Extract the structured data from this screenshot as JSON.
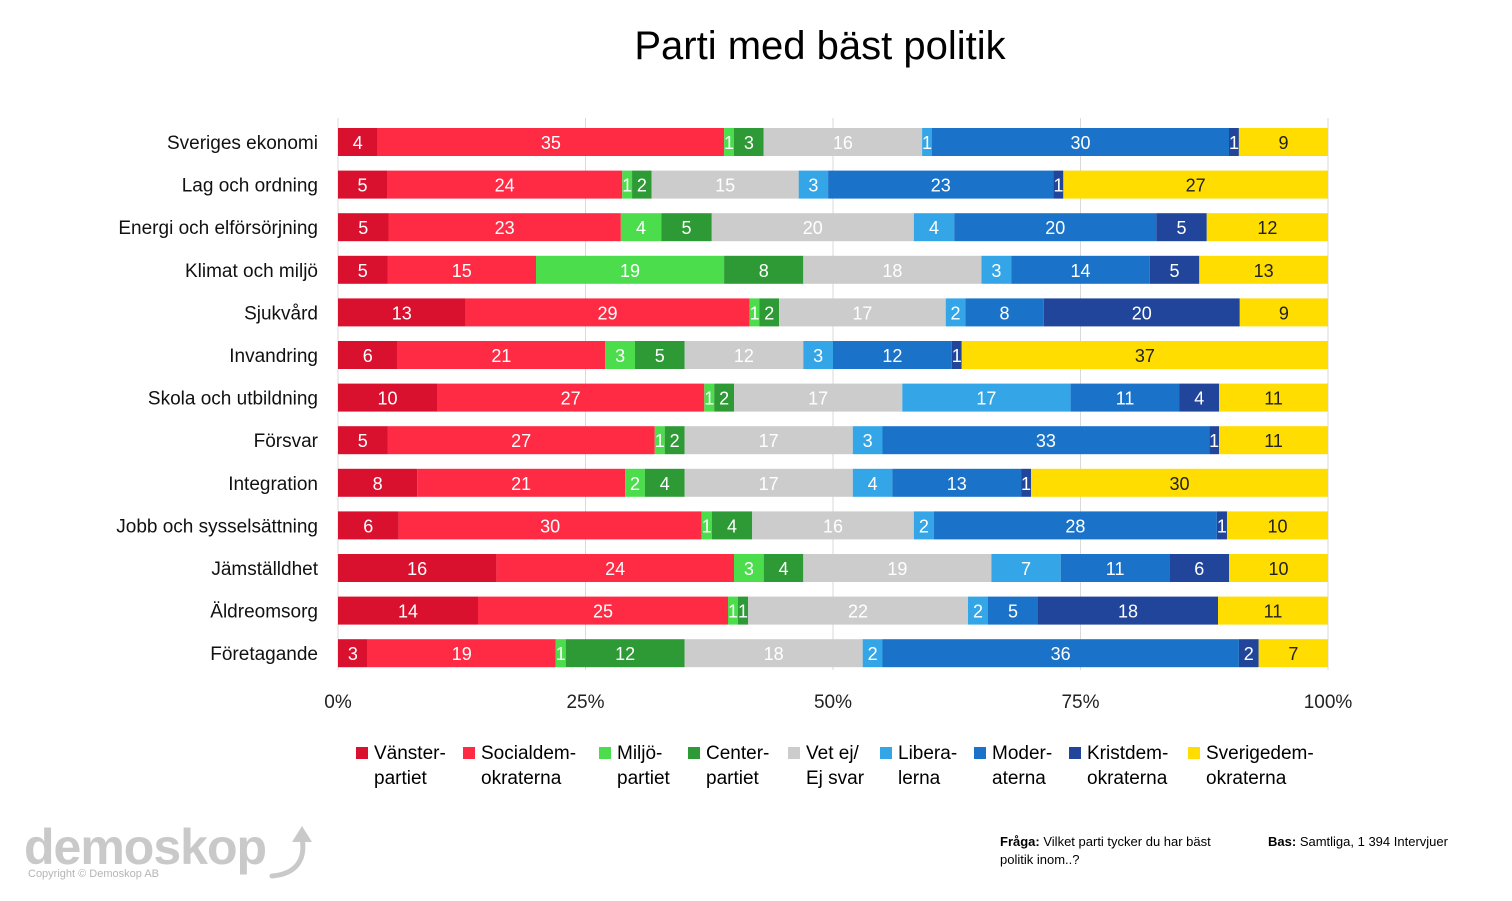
{
  "title": "Parti med bäst politik",
  "chart_data": {
    "type": "bar",
    "orientation": "horizontal",
    "stacked": true,
    "title": "Parti med bäst politik",
    "categories": [
      "Sveriges ekonomi",
      "Lag och ordning",
      "Energi och elförsörjning",
      "Klimat och miljö",
      "Sjukvård",
      "Invandring",
      "Skola och utbildning",
      "Försvar",
      "Integration",
      "Jobb och sysselsättning",
      "Jämställdhet",
      "Äldreomsorg",
      "Företagande"
    ],
    "xlim": [
      0,
      100
    ],
    "x_ticks": [
      "0%",
      "25%",
      "50%",
      "75%",
      "100%"
    ],
    "grid": true,
    "legend_position": "bottom",
    "series": [
      {
        "name": "Vänster-\npartiet",
        "color": "#d9112f",
        "values": [
          4,
          5,
          5,
          5,
          13,
          6,
          10,
          5,
          8,
          6,
          16,
          14,
          3
        ]
      },
      {
        "name": "Socialdem-\nokraterna",
        "color": "#ff2b45",
        "values": [
          35,
          24,
          23,
          15,
          29,
          21,
          27,
          27,
          21,
          30,
          24,
          25,
          19
        ]
      },
      {
        "name": "Miljö-\npartiet",
        "color": "#4cdd4c",
        "values": [
          1,
          1,
          4,
          19,
          1,
          3,
          1,
          1,
          2,
          1,
          3,
          1,
          1
        ]
      },
      {
        "name": "Center-\npartiet",
        "color": "#2e9a36",
        "values": [
          3,
          2,
          5,
          8,
          2,
          5,
          2,
          2,
          4,
          4,
          4,
          1,
          12
        ]
      },
      {
        "name": "Vet ej/\nEj svar",
        "color": "#cccccc",
        "values": [
          16,
          15,
          20,
          18,
          17,
          12,
          17,
          17,
          17,
          16,
          19,
          22,
          18
        ]
      },
      {
        "name": "Libera-\nlerna",
        "color": "#34a6e8",
        "values": [
          1,
          3,
          4,
          3,
          2,
          3,
          17,
          3,
          4,
          2,
          7,
          2,
          2
        ]
      },
      {
        "name": "Moder-\naterna",
        "color": "#1a73c9",
        "values": [
          30,
          23,
          20,
          14,
          8,
          12,
          11,
          33,
          13,
          28,
          11,
          5,
          36
        ]
      },
      {
        "name": "Kristdem-\nokraterna",
        "color": "#21459b",
        "values": [
          1,
          1,
          5,
          5,
          20,
          1,
          4,
          1,
          1,
          1,
          6,
          18,
          2
        ]
      },
      {
        "name": "Sverigedem-\nokraterna",
        "color": "#ffdd00",
        "values": [
          9,
          27,
          12,
          13,
          9,
          37,
          11,
          11,
          30,
          10,
          10,
          11,
          7
        ]
      }
    ]
  },
  "legend_items": [
    {
      "l1": "Vänster-",
      "l2": "partiet",
      "color": "#d9112f"
    },
    {
      "l1": "Socialdem-",
      "l2": "okraterna",
      "color": "#ff2b45"
    },
    {
      "l1": "Miljö-",
      "l2": "partiet",
      "color": "#4cdd4c"
    },
    {
      "l1": "Center-",
      "l2": "partiet",
      "color": "#2e9a36"
    },
    {
      "l1": "Vet ej/",
      "l2": "Ej svar",
      "color": "#cccccc"
    },
    {
      "l1": "Libera-",
      "l2": "lerna",
      "color": "#34a6e8"
    },
    {
      "l1": "Moder-",
      "l2": "aterna",
      "color": "#1a73c9"
    },
    {
      "l1": "Kristdem-",
      "l2": "okraterna",
      "color": "#21459b"
    },
    {
      "l1": "Sverigedem-",
      "l2": "okraterna",
      "color": "#ffdd00"
    }
  ],
  "footer": {
    "logo_text": "demoskop",
    "copyright": "Copyright © Demoskop AB",
    "question_label": "Fråga:",
    "question_text": "Vilket parti tycker du har bäst politik inom..?",
    "base_label": "Bas:",
    "base_text": "Samtliga, 1 394 Intervjuer"
  }
}
